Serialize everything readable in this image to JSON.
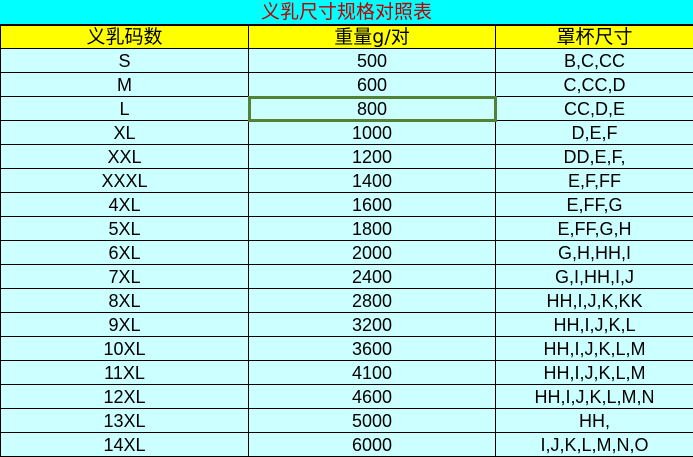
{
  "title": "义乳尺寸规格对照表",
  "headers": [
    "义乳码数",
    "重量g/对",
    "罩杯尺寸"
  ],
  "rows": [
    [
      "S",
      "500",
      "B,C,CC"
    ],
    [
      "M",
      "600",
      "C,CC,D"
    ],
    [
      "L",
      "800",
      "CC,D,E"
    ],
    [
      "XL",
      "1000",
      "D,E,F"
    ],
    [
      "XXL",
      "1200",
      "DD,E,F,"
    ],
    [
      "XXXL",
      "1400",
      "E,F,FF"
    ],
    [
      "4XL",
      "1600",
      "E,FF,G"
    ],
    [
      "5XL",
      "1800",
      "E,FF,G,H"
    ],
    [
      "6XL",
      "2000",
      "G,H,HH,I"
    ],
    [
      "7XL",
      "2400",
      "G,I,HH,I,J"
    ],
    [
      "8XL",
      "2800",
      "HH,I,J,K,KK"
    ],
    [
      "9XL",
      "3200",
      "HH,I,J,K,L"
    ],
    [
      "10XL",
      "3600",
      "HH,I,J,K,L,M"
    ],
    [
      "11XL",
      "4100",
      "HH,I,J,K,L,M"
    ],
    [
      "12XL",
      "4600",
      "HH,I,J,K,L,M,N"
    ],
    [
      "13XL",
      "5000",
      "HH,"
    ],
    [
      "14XL",
      "6000",
      "I,J,K,L,M,N,O"
    ]
  ],
  "selected_cell": {
    "row": 2,
    "col": 1
  },
  "colors": {
    "title_bg": "#00ffff",
    "title_text": "#c00000",
    "header_bg": "#ffff00",
    "body_bg": "#ccffff",
    "selection": "#538135"
  }
}
